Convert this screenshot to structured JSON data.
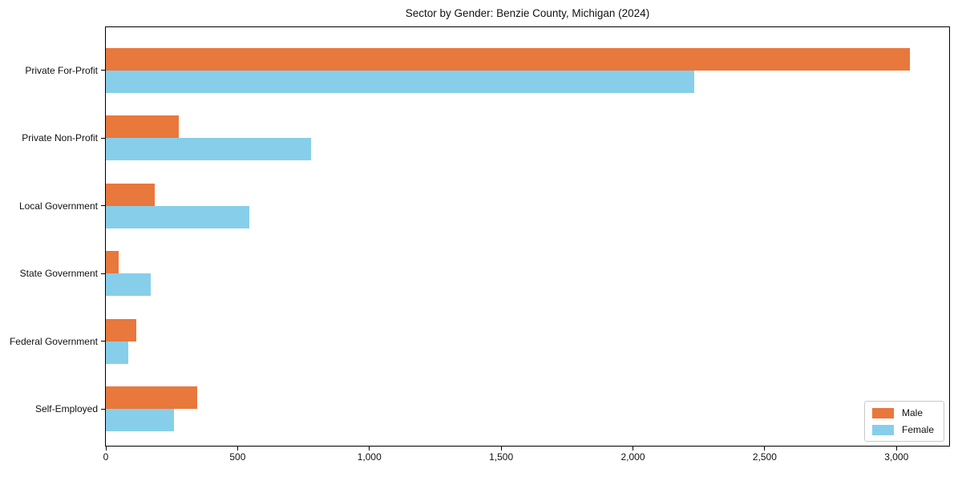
{
  "chart_data": {
    "type": "bar",
    "orientation": "horizontal",
    "title": "Sector by Gender: Benzie County, Michigan (2024)",
    "categories": [
      "Private For-Profit",
      "Private Non-Profit",
      "Local Government",
      "State Government",
      "Federal Government",
      "Self-Employed"
    ],
    "series": [
      {
        "name": "Male",
        "color": "#e8783c",
        "values": [
          3050,
          276,
          186,
          48,
          115,
          347
        ]
      },
      {
        "name": "Female",
        "color": "#87ceeb",
        "values": [
          2232,
          778,
          544,
          170,
          84,
          258
        ]
      }
    ],
    "xlabel": "",
    "ylabel": "",
    "xlim": [
      0,
      3200
    ],
    "xticks": [
      0,
      500,
      1000,
      1500,
      2000,
      2500,
      3000
    ],
    "xtick_labels": [
      "0",
      "500",
      "1,000",
      "1,500",
      "2,000",
      "2,500",
      "3,000"
    ],
    "grid": false,
    "legend_position": "lower right",
    "axis_color": "#000000",
    "background_color": "#ffffff"
  }
}
